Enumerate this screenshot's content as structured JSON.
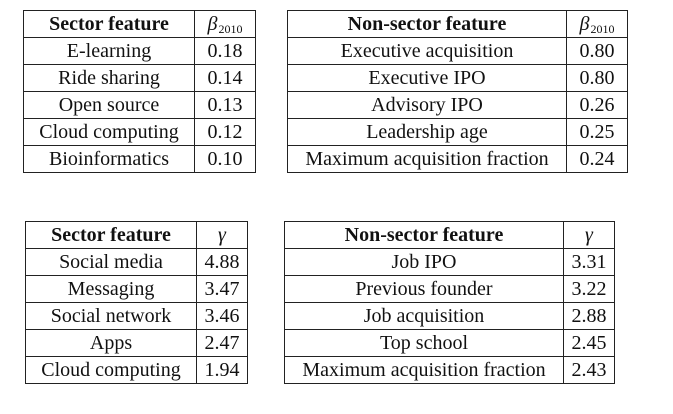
{
  "table_top_left": {
    "header": {
      "feature": "Sector feature",
      "coef_symbol": "β",
      "coef_subscript": "2010"
    },
    "rows": [
      {
        "feature": "E-learning",
        "value": "0.18"
      },
      {
        "feature": "Ride sharing",
        "value": "0.14"
      },
      {
        "feature": "Open source",
        "value": "0.13"
      },
      {
        "feature": "Cloud computing",
        "value": "0.12"
      },
      {
        "feature": "Bioinformatics",
        "value": "0.10"
      }
    ]
  },
  "table_top_right": {
    "header": {
      "feature": "Non-sector feature",
      "coef_symbol": "β",
      "coef_subscript": "2010"
    },
    "rows": [
      {
        "feature": "Executive acquisition",
        "value": "0.80"
      },
      {
        "feature": "Executive IPO",
        "value": "0.80"
      },
      {
        "feature": "Advisory IPO",
        "value": "0.26"
      },
      {
        "feature": "Leadership age",
        "value": "0.25"
      },
      {
        "feature": "Maximum acquisition fraction",
        "value": "0.24"
      }
    ]
  },
  "table_bottom_left": {
    "header": {
      "feature": "Sector feature",
      "coef_symbol": "γ"
    },
    "rows": [
      {
        "feature": "Social media",
        "value": "4.88"
      },
      {
        "feature": "Messaging",
        "value": "3.47"
      },
      {
        "feature": "Social network",
        "value": "3.46"
      },
      {
        "feature": "Apps",
        "value": "2.47"
      },
      {
        "feature": "Cloud computing",
        "value": "1.94"
      }
    ]
  },
  "table_bottom_right": {
    "header": {
      "feature": "Non-sector feature",
      "coef_symbol": "γ"
    },
    "rows": [
      {
        "feature": "Job IPO",
        "value": "3.31"
      },
      {
        "feature": "Previous founder",
        "value": "3.22"
      },
      {
        "feature": "Job acquisition",
        "value": "2.88"
      },
      {
        "feature": "Top school",
        "value": "2.45"
      },
      {
        "feature": "Maximum acquisition fraction",
        "value": "2.43"
      }
    ]
  }
}
